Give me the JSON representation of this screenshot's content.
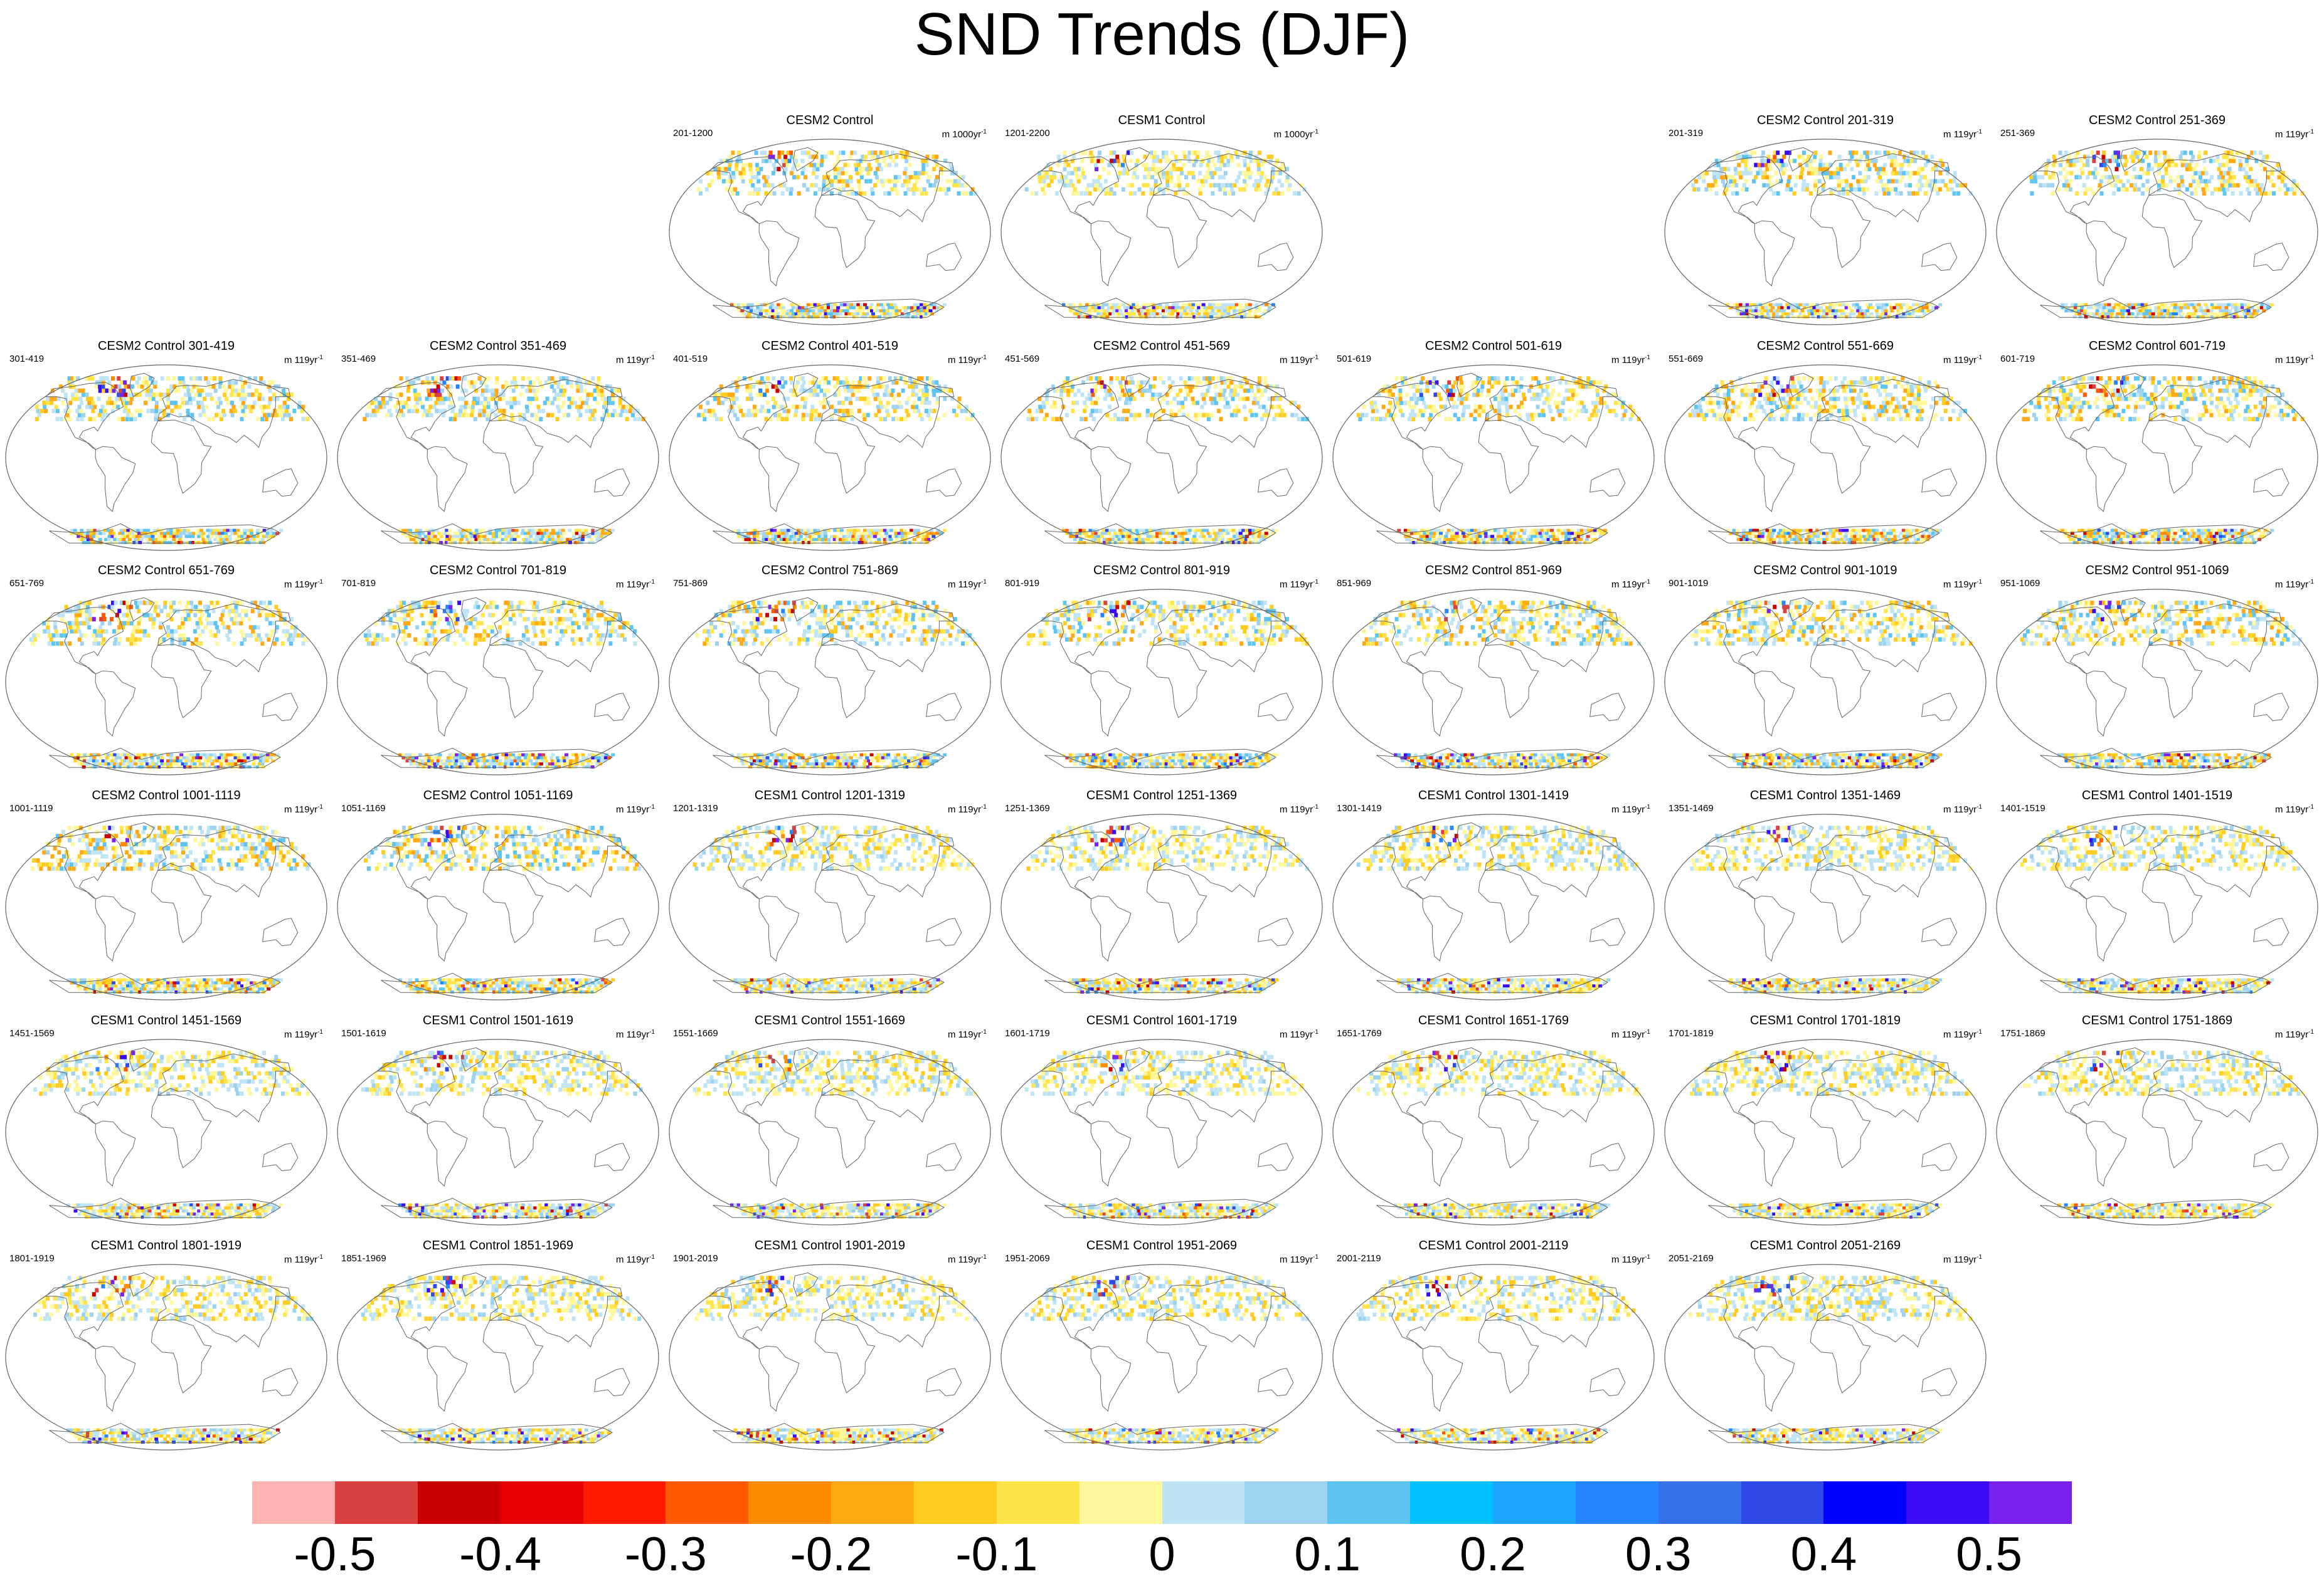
{
  "title": "SND Trends (DJF)",
  "units_prefix": "m ",
  "rows": [
    [
      null,
      null,
      {
        "title": "CESM2 Control",
        "left": "201-1200",
        "units": "1000yr",
        "pal": "cesm2"
      },
      {
        "title": "CESM1 Control",
        "left": "1201-2200",
        "units": "1000yr",
        "pal": "cesm1"
      },
      null,
      {
        "title": "CESM2 Control 201-319",
        "left": "201-319",
        "units": "119yr",
        "pal": "cesm2"
      },
      {
        "title": "CESM2 Control 251-369",
        "left": "251-369",
        "units": "119yr",
        "pal": "cesm2"
      }
    ],
    [
      {
        "title": "CESM2 Control 301-419",
        "left": "301-419",
        "units": "119yr",
        "pal": "cesm2"
      },
      {
        "title": "CESM2 Control 351-469",
        "left": "351-469",
        "units": "119yr",
        "pal": "cesm2"
      },
      {
        "title": "CESM2 Control 401-519",
        "left": "401-519",
        "units": "119yr",
        "pal": "cesm2"
      },
      {
        "title": "CESM2 Control 451-569",
        "left": "451-569",
        "units": "119yr",
        "pal": "cesm2"
      },
      {
        "title": "CESM2 Control 501-619",
        "left": "501-619",
        "units": "119yr",
        "pal": "cesm2"
      },
      {
        "title": "CESM2 Control 551-669",
        "left": "551-669",
        "units": "119yr",
        "pal": "cesm2"
      },
      {
        "title": "CESM2 Control 601-719",
        "left": "601-719",
        "units": "119yr",
        "pal": "cesm2"
      }
    ],
    [
      {
        "title": "CESM2 Control 651-769",
        "left": "651-769",
        "units": "119yr",
        "pal": "cesm2"
      },
      {
        "title": "CESM2 Control 701-819",
        "left": "701-819",
        "units": "119yr",
        "pal": "cesm2"
      },
      {
        "title": "CESM2 Control 751-869",
        "left": "751-869",
        "units": "119yr",
        "pal": "cesm2"
      },
      {
        "title": "CESM2 Control 801-919",
        "left": "801-919",
        "units": "119yr",
        "pal": "cesm2"
      },
      {
        "title": "CESM2 Control 851-969",
        "left": "851-969",
        "units": "119yr",
        "pal": "cesm2"
      },
      {
        "title": "CESM2 Control 901-1019",
        "left": "901-1019",
        "units": "119yr",
        "pal": "cesm2"
      },
      {
        "title": "CESM2 Control 951-1069",
        "left": "951-1069",
        "units": "119yr",
        "pal": "cesm2"
      }
    ],
    [
      {
        "title": "CESM2 Control 1001-1119",
        "left": "1001-1119",
        "units": "119yr",
        "pal": "cesm2"
      },
      {
        "title": "CESM2 Control 1051-1169",
        "left": "1051-1169",
        "units": "119yr",
        "pal": "cesm2"
      },
      {
        "title": "CESM1 Control 1201-1319",
        "left": "1201-1319",
        "units": "119yr",
        "pal": "cesm1"
      },
      {
        "title": "CESM1 Control 1251-1369",
        "left": "1251-1369",
        "units": "119yr",
        "pal": "cesm1"
      },
      {
        "title": "CESM1 Control 1301-1419",
        "left": "1301-1419",
        "units": "119yr",
        "pal": "cesm1"
      },
      {
        "title": "CESM1 Control 1351-1469",
        "left": "1351-1469",
        "units": "119yr",
        "pal": "cesm1"
      },
      {
        "title": "CESM1 Control 1401-1519",
        "left": "1401-1519",
        "units": "119yr",
        "pal": "cesm1"
      }
    ],
    [
      {
        "title": "CESM1 Control 1451-1569",
        "left": "1451-1569",
        "units": "119yr",
        "pal": "cesm1"
      },
      {
        "title": "CESM1 Control 1501-1619",
        "left": "1501-1619",
        "units": "119yr",
        "pal": "cesm1"
      },
      {
        "title": "CESM1 Control 1551-1669",
        "left": "1551-1669",
        "units": "119yr",
        "pal": "cesm1"
      },
      {
        "title": "CESM1 Control 1601-1719",
        "left": "1601-1719",
        "units": "119yr",
        "pal": "cesm1"
      },
      {
        "title": "CESM1 Control 1651-1769",
        "left": "1651-1769",
        "units": "119yr",
        "pal": "cesm1"
      },
      {
        "title": "CESM1 Control 1701-1819",
        "left": "1701-1819",
        "units": "119yr",
        "pal": "cesm1"
      },
      {
        "title": "CESM1 Control 1751-1869",
        "left": "1751-1869",
        "units": "119yr",
        "pal": "cesm1"
      }
    ],
    [
      {
        "title": "CESM1 Control 1801-1919",
        "left": "1801-1919",
        "units": "119yr",
        "pal": "cesm1"
      },
      {
        "title": "CESM1 Control 1851-1969",
        "left": "1851-1969",
        "units": "119yr",
        "pal": "cesm1"
      },
      {
        "title": "CESM1 Control 1901-2019",
        "left": "1901-2019",
        "units": "119yr",
        "pal": "cesm1"
      },
      {
        "title": "CESM1 Control 1951-2069",
        "left": "1951-2069",
        "units": "119yr",
        "pal": "cesm1"
      },
      {
        "title": "CESM1 Control 2001-2119",
        "left": "2001-2119",
        "units": "119yr",
        "pal": "cesm1"
      },
      {
        "title": "CESM1 Control 2051-2169",
        "left": "2051-2169",
        "units": "119yr",
        "pal": "cesm1"
      },
      null
    ]
  ],
  "colorbar": {
    "colors": [
      "#ffb3b3",
      "#d94141",
      "#c80000",
      "#e60000",
      "#ff1a00",
      "#ff5a00",
      "#ff8c00",
      "#ffaa14",
      "#ffcc22",
      "#ffe44a",
      "#fff79a",
      "#bfe4f5",
      "#9dd3ef",
      "#5ec4f2",
      "#00c0ff",
      "#1ea6ff",
      "#2585ff",
      "#3570e8",
      "#2f4ae6",
      "#0000ff",
      "#3a0cf5",
      "#7a22ee"
    ],
    "tick_labels": [
      "-0.5",
      "-0.4",
      "-0.3",
      "-0.2",
      "-0.1",
      "0",
      "0.1",
      "0.2",
      "0.3",
      "0.4",
      "0.5"
    ]
  }
}
